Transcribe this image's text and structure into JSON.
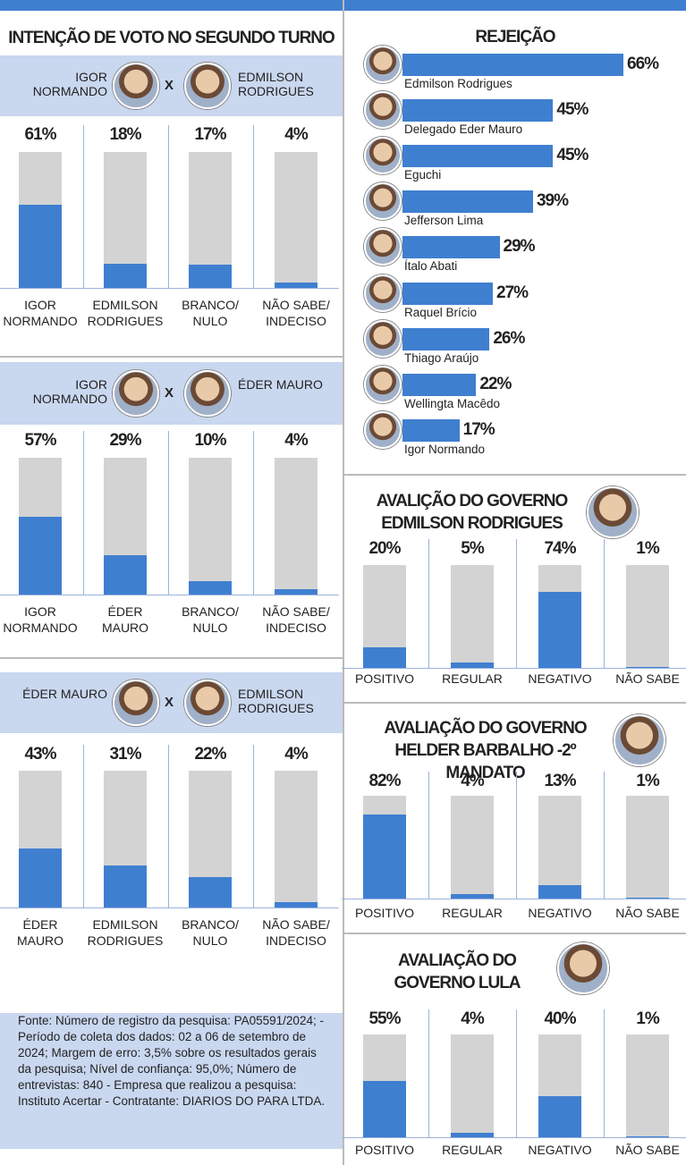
{
  "heading": "INTENÇÃO DE VOTO NO SEGUNDO TURNO",
  "source": "Fonte: Número de registro da pesquisa: PA05591/2024; - Período de coleta dos dados: 02 a 06 de setembro de 2024; Margem de erro: 3,5% sobre os resultados gerais da pesquisa; Nível de confiança: 95,0%; Número de entrevistas: 840 - Empresa que realizou a pesquisa: Instituto Acertar - Contratante: DIARIOS DO PARA LTDA.",
  "chart_data": [
    {
      "type": "bar",
      "candidates": [
        "IGOR NORMANDO",
        "EDMILSON RODRIGUES"
      ],
      "versus": "X",
      "categories": [
        "IGOR NORMANDO",
        "EDMILSON RODRIGUES",
        "BRANCO/ NULO",
        "NÃO SABE/ INDECISO"
      ],
      "values": [
        61,
        18,
        17,
        4
      ],
      "value_labels": [
        "61%",
        "18%",
        "17%",
        "4%"
      ],
      "color": "#3f7fd0",
      "ylim": [
        0,
        100
      ]
    },
    {
      "type": "bar",
      "candidates": [
        "IGOR NORMANDO",
        "ÉDER MAURO"
      ],
      "versus": "X",
      "categories": [
        "IGOR NORMANDO",
        "ÉDER MAURO",
        "BRANCO/ NULO",
        "NÃO SABE/ INDECISO"
      ],
      "values": [
        57,
        29,
        10,
        4
      ],
      "value_labels": [
        "57%",
        "29%",
        "10%",
        "4%"
      ],
      "color": "#3f7fd0",
      "ylim": [
        0,
        100
      ]
    },
    {
      "type": "bar",
      "candidates": [
        "ÉDER MAURO",
        "EDMILSON RODRIGUES"
      ],
      "versus": "X",
      "categories": [
        "ÉDER MAURO",
        "EDMILSON RODRIGUES",
        "BRANCO/ NULO",
        "NÃO SABE/ INDECISO"
      ],
      "values": [
        43,
        31,
        22,
        4
      ],
      "value_labels": [
        "43%",
        "31%",
        "22%",
        "4%"
      ],
      "color": "#3f7fd0",
      "ylim": [
        0,
        100
      ]
    },
    {
      "type": "hbar",
      "title": "REJEIÇÃO",
      "categories": [
        "Edmilson Rodrigues",
        "Delegado Eder Mauro",
        "Eguchi",
        "Jefferson Lima",
        "Ítalo Abati",
        "Raquel Brício",
        "Thiago Araújo",
        "Wellingta Macêdo",
        "Igor Normando"
      ],
      "values": [
        66,
        45,
        45,
        39,
        29,
        27,
        26,
        22,
        17
      ],
      "value_labels": [
        "66%",
        "45%",
        "45%",
        "39%",
        "29%",
        "27%",
        "26%",
        "22%",
        "17%"
      ],
      "color": "#3f7fd0",
      "xlim": [
        0,
        70
      ]
    },
    {
      "type": "bar",
      "title": "AVALIÇÃO DO GOVERNO EDMILSON RODRIGUES",
      "categories": [
        "POSITIVO",
        "REGULAR",
        "NEGATIVO",
        "NÃO SABE"
      ],
      "values": [
        20,
        5,
        74,
        1
      ],
      "value_labels": [
        "20%",
        "5%",
        "74%",
        "1%"
      ],
      "color": "#3f7fd0",
      "ylim": [
        0,
        100
      ]
    },
    {
      "type": "bar",
      "title": "AVALIAÇÃO DO GOVERNO HELDER BARBALHO -2º MANDATO",
      "categories": [
        "POSITIVO",
        "REGULAR",
        "NEGATIVO",
        "NÃO SABE"
      ],
      "values": [
        82,
        4,
        13,
        1
      ],
      "value_labels": [
        "82%",
        "4%",
        "13%",
        "1%"
      ],
      "color": "#3f7fd0",
      "ylim": [
        0,
        100
      ]
    },
    {
      "type": "bar",
      "title": "AVALIAÇÃO DO GOVERNO LULA",
      "categories": [
        "POSITIVO",
        "REGULAR",
        "NEGATIVO",
        "NÃO SABE"
      ],
      "values": [
        55,
        4,
        40,
        1
      ],
      "value_labels": [
        "55%",
        "4%",
        "40%",
        "1%"
      ],
      "color": "#3f7fd0",
      "ylim": [
        0,
        100
      ]
    }
  ]
}
